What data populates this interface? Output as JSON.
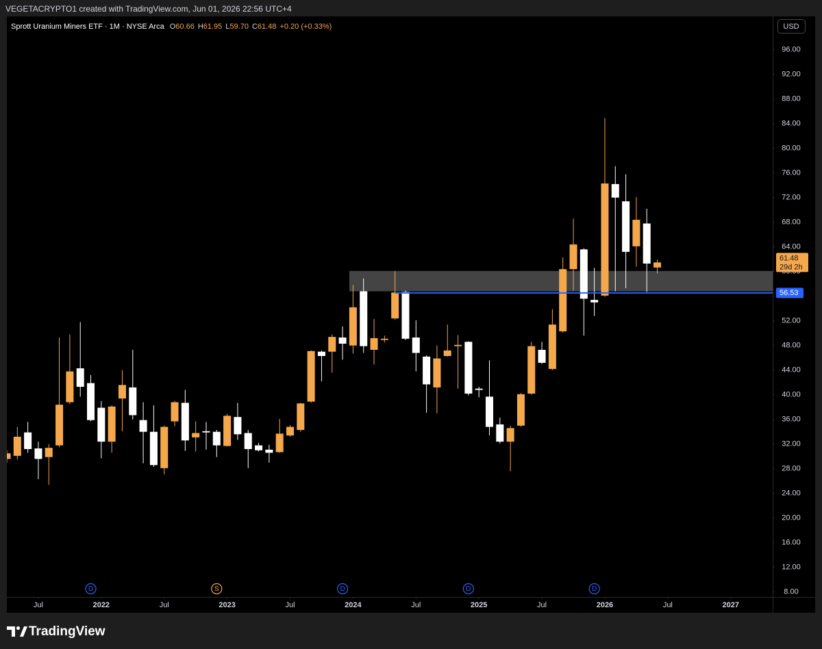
{
  "header": "VEGETACRYPTO1 created with TradingView.com, Jun 01, 2026 22:56 UTC+4",
  "footer": "TradingView",
  "chart_data": {
    "type": "candlestick",
    "title": "Sprott Uranium Miners ETF · 1M · NYSE Arca",
    "ohlc_letters": [
      "O",
      "H",
      "L",
      "C"
    ],
    "last_bar_labels": [
      "60.66",
      "61.95",
      "59.70",
      "61.48"
    ],
    "change_label": "+0.20 (+0.33%)",
    "currency": "USD",
    "countdown": "29d 2h",
    "up_color": "#f5a74c",
    "down_color": "#ffffff",
    "x": [
      "2021-04",
      "2021-05",
      "2021-06",
      "2021-07",
      "2021-08",
      "2021-09",
      "2021-10",
      "2021-11",
      "2021-12",
      "2022-01",
      "2022-02",
      "2022-03",
      "2022-04",
      "2022-05",
      "2022-06",
      "2022-07",
      "2022-08",
      "2022-09",
      "2022-10",
      "2022-11",
      "2022-12",
      "2023-01",
      "2023-02",
      "2023-03",
      "2023-04",
      "2023-05",
      "2023-06",
      "2023-07",
      "2023-08",
      "2023-09",
      "2023-10",
      "2023-11",
      "2023-12",
      "2024-01",
      "2024-02",
      "2024-03",
      "2024-04",
      "2024-05",
      "2024-06",
      "2024-07",
      "2024-08",
      "2024-09",
      "2024-10",
      "2024-11",
      "2024-12",
      "2025-01",
      "2025-02",
      "2025-03",
      "2025-04",
      "2025-05",
      "2025-06",
      "2025-07",
      "2025-08",
      "2025-09",
      "2025-10",
      "2025-11",
      "2025-12",
      "2026-01",
      "2026-02",
      "2026-03",
      "2026-04",
      "2026-05",
      "2026-06"
    ],
    "open": [
      29.6,
      30.1,
      33.9,
      31.3,
      29.9,
      31.8,
      38.8,
      44.3,
      41.9,
      37.9,
      32.4,
      39.4,
      41.2,
      35.9,
      34,
      28.1,
      35.7,
      38.7,
      33.1,
      34.1,
      34,
      31.7,
      36.4,
      33.8,
      31.8,
      31.1,
      30.7,
      33.4,
      34.3,
      38.9,
      47,
      47,
      49.3,
      48,
      56.8,
      47.3,
      48.9,
      52.4,
      56.7,
      49.3,
      46.2,
      41.2,
      46.3,
      47.9,
      48.6,
      41,
      39.7,
      35.2,
      32.4,
      35,
      40.2,
      47.3,
      44.2,
      50.3,
      60.4,
      63.6,
      55.4,
      56.1,
      74.2,
      71.4,
      64.1,
      67.8,
      60.66
    ],
    "high": [
      31,
      34.8,
      35.6,
      32.4,
      32,
      49.3,
      49.8,
      51.8,
      43.2,
      39,
      38.3,
      44,
      47.3,
      38.8,
      38.3,
      35,
      39,
      40.8,
      35.7,
      35.6,
      34.3,
      36.9,
      38.7,
      34.3,
      32.2,
      31.9,
      36.1,
      35.1,
      38.7,
      47.2,
      47.2,
      49.8,
      51.1,
      57.8,
      58.9,
      52.3,
      49.6,
      60.1,
      56.9,
      52.1,
      46.4,
      48,
      51.4,
      49.7,
      48.7,
      41.3,
      45.6,
      36.3,
      35,
      40.3,
      48.6,
      48.6,
      53.9,
      62.3,
      68.6,
      63.8,
      60.6,
      84.9,
      77.1,
      75.8,
      72.1,
      70.2,
      61.95
    ],
    "low": [
      29,
      29.5,
      30.6,
      26.3,
      25.4,
      31.5,
      38.5,
      39.7,
      35.7,
      29.7,
      30.6,
      34.1,
      36,
      28.9,
      28.3,
      27.1,
      34.9,
      30.9,
      30.8,
      31.1,
      29.9,
      31.6,
      32.7,
      28.1,
      30.8,
      29,
      30.6,
      33.2,
      34,
      38.7,
      42.2,
      43.6,
      45.7,
      46.7,
      46.8,
      44.9,
      48.5,
      52.2,
      48.9,
      43.8,
      37.1,
      37,
      46.2,
      41,
      39.9,
      39.6,
      33.4,
      32.1,
      27.6,
      34.8,
      40,
      45,
      44,
      50.1,
      56.9,
      49.6,
      52.8,
      55.9,
      56.8,
      57.3,
      60.8,
      56.7,
      59.7
    ],
    "close": [
      30.5,
      33.2,
      31.2,
      29.6,
      31.4,
      38.4,
      43.8,
      41.3,
      35.9,
      32.4,
      38.1,
      41.6,
      36.7,
      34,
      28.6,
      34.8,
      38.8,
      32.6,
      33.8,
      33.9,
      31.8,
      36.6,
      33.6,
      31.2,
      31,
      30.6,
      33.7,
      34.8,
      38.6,
      47.1,
      46.3,
      49.4,
      48.3,
      54.2,
      47.9,
      49.2,
      49.1,
      56.6,
      49.1,
      46.8,
      41.7,
      45.9,
      47.2,
      48.1,
      40.2,
      40.8,
      34.8,
      32.4,
      34.6,
      40.1,
      47.9,
      45.2,
      51.4,
      60.4,
      64.4,
      55.6,
      55,
      74.3,
      72,
      63.2,
      68.4,
      61.3,
      61.48
    ],
    "xlim": [
      "2021-04",
      "2027-05"
    ],
    "xticks": [
      {
        "value": "2021-07",
        "label": "Jul"
      },
      {
        "value": "2022-01",
        "label": "2022"
      },
      {
        "value": "2022-07",
        "label": "Jul"
      },
      {
        "value": "2023-01",
        "label": "2023"
      },
      {
        "value": "2023-07",
        "label": "Jul"
      },
      {
        "value": "2024-01",
        "label": "2024"
      },
      {
        "value": "2024-07",
        "label": "Jul"
      },
      {
        "value": "2025-01",
        "label": "2025"
      },
      {
        "value": "2025-07",
        "label": "Jul"
      },
      {
        "value": "2026-01",
        "label": "2026"
      },
      {
        "value": "2026-07",
        "label": "Jul"
      },
      {
        "value": "2027-01",
        "label": "2027"
      }
    ],
    "ylim": [
      7.2,
      101.4
    ],
    "yticks": [
      {
        "value": 8,
        "label": "8.00"
      },
      {
        "value": 12,
        "label": "12.00"
      },
      {
        "value": 16,
        "label": "16.00"
      },
      {
        "value": 20,
        "label": "20.00"
      },
      {
        "value": 24,
        "label": "24.00"
      },
      {
        "value": 28,
        "label": "28.00"
      },
      {
        "value": 32,
        "label": "32.00"
      },
      {
        "value": 36,
        "label": "36.00"
      },
      {
        "value": 40,
        "label": "40.00"
      },
      {
        "value": 44,
        "label": "44.00"
      },
      {
        "value": 48,
        "label": "48.00"
      },
      {
        "value": 52,
        "label": "52.00"
      },
      {
        "value": 56,
        "label": "56.00"
      },
      {
        "value": 60,
        "label": "60.00"
      },
      {
        "value": 64,
        "label": "64.00"
      },
      {
        "value": 68,
        "label": "68.00"
      },
      {
        "value": 72,
        "label": "72.00"
      },
      {
        "value": 76,
        "label": "76.00"
      },
      {
        "value": 80,
        "label": "80.00"
      },
      {
        "value": 84,
        "label": "84.00"
      },
      {
        "value": 88,
        "label": "88.00"
      },
      {
        "value": 92,
        "label": "92.00"
      },
      {
        "value": 96,
        "label": "96.00"
      }
    ],
    "zone": {
      "top": 60.1,
      "bottom": 56.8,
      "start": "2024-01",
      "color": "#4b4b4b"
    },
    "level": {
      "value": 56.53,
      "start": "2024-05",
      "color": "#2962ff"
    },
    "events": [
      {
        "x": "2021-12",
        "label": "D",
        "color": "#2962ff"
      },
      {
        "x": "2022-12",
        "label": "S",
        "color": "#f5a74c"
      },
      {
        "x": "2023-12",
        "label": "D",
        "color": "#2962ff"
      },
      {
        "x": "2024-12",
        "label": "D",
        "color": "#2962ff"
      },
      {
        "x": "2025-12",
        "label": "D",
        "color": "#2962ff"
      }
    ]
  }
}
